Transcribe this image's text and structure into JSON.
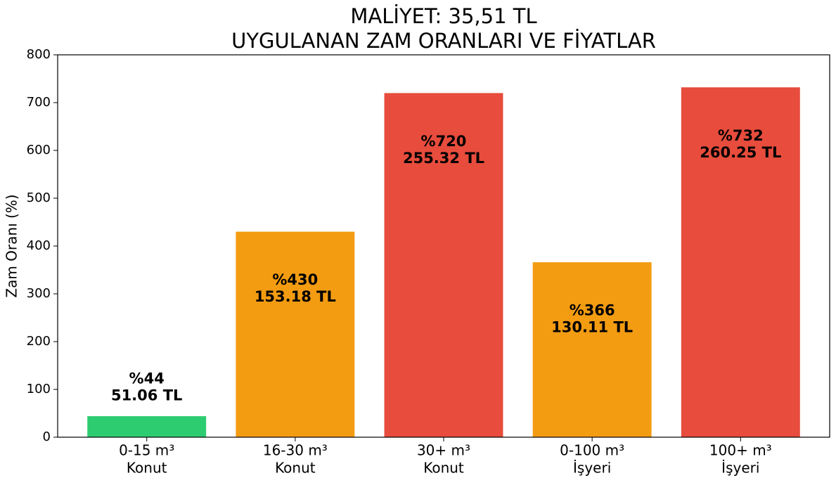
{
  "chart_data": {
    "type": "bar",
    "title": [
      "MALİYET: 35,51 TL",
      "UYGULANAN ZAM ORANLARI VE FİYATLAR"
    ],
    "y_label": "Zam Oranı (%)",
    "categories": [
      [
        "0-15 m³",
        "Konut"
      ],
      [
        "16-30 m³",
        "Konut"
      ],
      [
        "30+ m³",
        "Konut"
      ],
      [
        "0-100 m³",
        "İşyeri"
      ],
      [
        "100+ m³",
        "İşyeri"
      ]
    ],
    "values": [
      44,
      430,
      720,
      366,
      732
    ],
    "value_labels": [
      "%44",
      "%430",
      "%720",
      "%366",
      "%732"
    ],
    "price_labels": [
      "51.06 TL",
      "153.18 TL",
      "255.32 TL",
      "130.11 TL",
      "260.25 TL"
    ],
    "colors": [
      "#2ecc71",
      "#f39c12",
      "#e74c3c",
      "#f39c12",
      "#e74c3c"
    ],
    "ylim": [
      0,
      800
    ],
    "yticks": [
      0,
      100,
      200,
      300,
      400,
      500,
      600,
      700,
      800
    ],
    "grid": false
  }
}
